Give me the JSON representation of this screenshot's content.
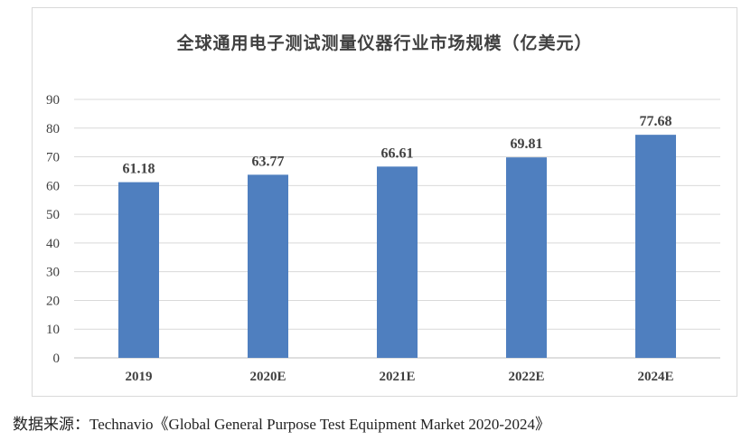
{
  "chart_data": {
    "type": "bar",
    "title": "全球通用电子测试测量仪器行业市场规模（亿美元）",
    "categories": [
      "2019",
      "2020E",
      "2021E",
      "2022E",
      "2024E"
    ],
    "values": [
      61.18,
      63.77,
      66.61,
      69.81,
      77.68
    ],
    "value_labels": [
      "61.18",
      "63.77",
      "66.61",
      "69.81",
      "77.68"
    ],
    "ylim": [
      0,
      90
    ],
    "yticks": [
      0,
      10,
      20,
      30,
      40,
      50,
      60,
      70,
      80,
      90
    ],
    "grid": true,
    "bar_color": "#4f7fbf"
  },
  "source": "数据来源：Technavio《Global General Purpose Test Equipment Market 2020-2024》"
}
